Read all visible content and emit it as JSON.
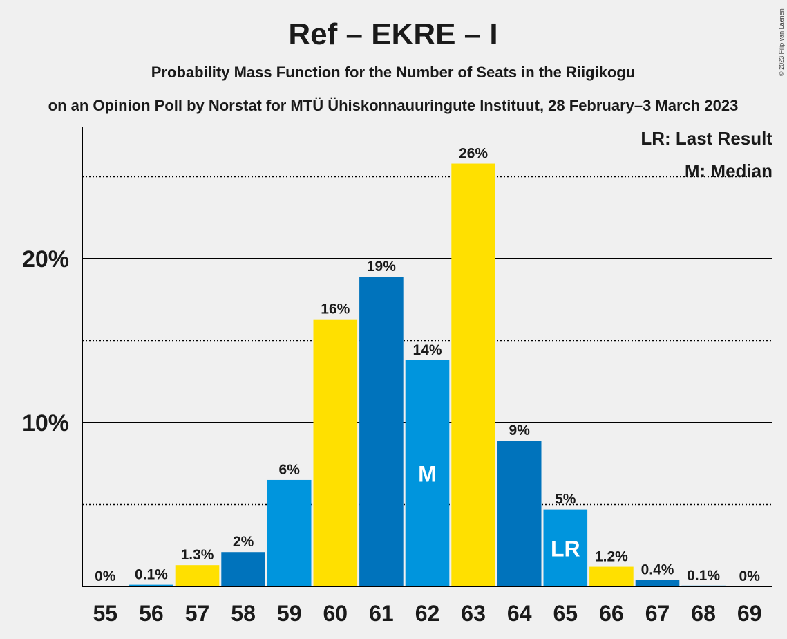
{
  "chart_data": {
    "type": "bar",
    "title": "Ref – EKRE – I",
    "subtitle": "Probability Mass Function for the Number of Seats in the Riigikogu",
    "subtitle2": "on an Opinion Poll by Norstat for MTÜ Ühiskonnauuringute Instituut, 28 February–3 March 2023",
    "copyright": "© 2023 Filip van Laenen",
    "legend": [
      "LR: Last Result",
      "M: Median"
    ],
    "categories": [
      "55",
      "56",
      "57",
      "58",
      "59",
      "60",
      "61",
      "62",
      "63",
      "64",
      "65",
      "66",
      "67",
      "68",
      "69"
    ],
    "values": [
      0,
      0.1,
      1.3,
      2.1,
      6.5,
      16.3,
      18.9,
      13.8,
      25.8,
      8.9,
      4.7,
      1.2,
      0.4,
      0.05,
      0
    ],
    "data_labels": [
      "0%",
      "0.1%",
      "1.3%",
      "2%",
      "6%",
      "16%",
      "19%",
      "14%",
      "26%",
      "9%",
      "5%",
      "1.2%",
      "0.4%",
      "0.1%",
      "0%"
    ],
    "colors": [
      "#ffe000",
      "#0095dd",
      "#ffe000",
      "#0073bc",
      "#0095dd",
      "#ffe000",
      "#0073bc",
      "#0095dd",
      "#ffe000",
      "#0073bc",
      "#0095dd",
      "#ffe000",
      "#0073bc",
      "#0095dd",
      "#ffe000"
    ],
    "markers": {
      "62": "M",
      "65": "LR"
    },
    "ylim": [
      0,
      28
    ],
    "yticks": [
      {
        "value": 10,
        "label": "10%"
      },
      {
        "value": 20,
        "label": "20%"
      }
    ],
    "minor_gridlines": [
      5,
      15,
      25
    ],
    "grid": true
  }
}
